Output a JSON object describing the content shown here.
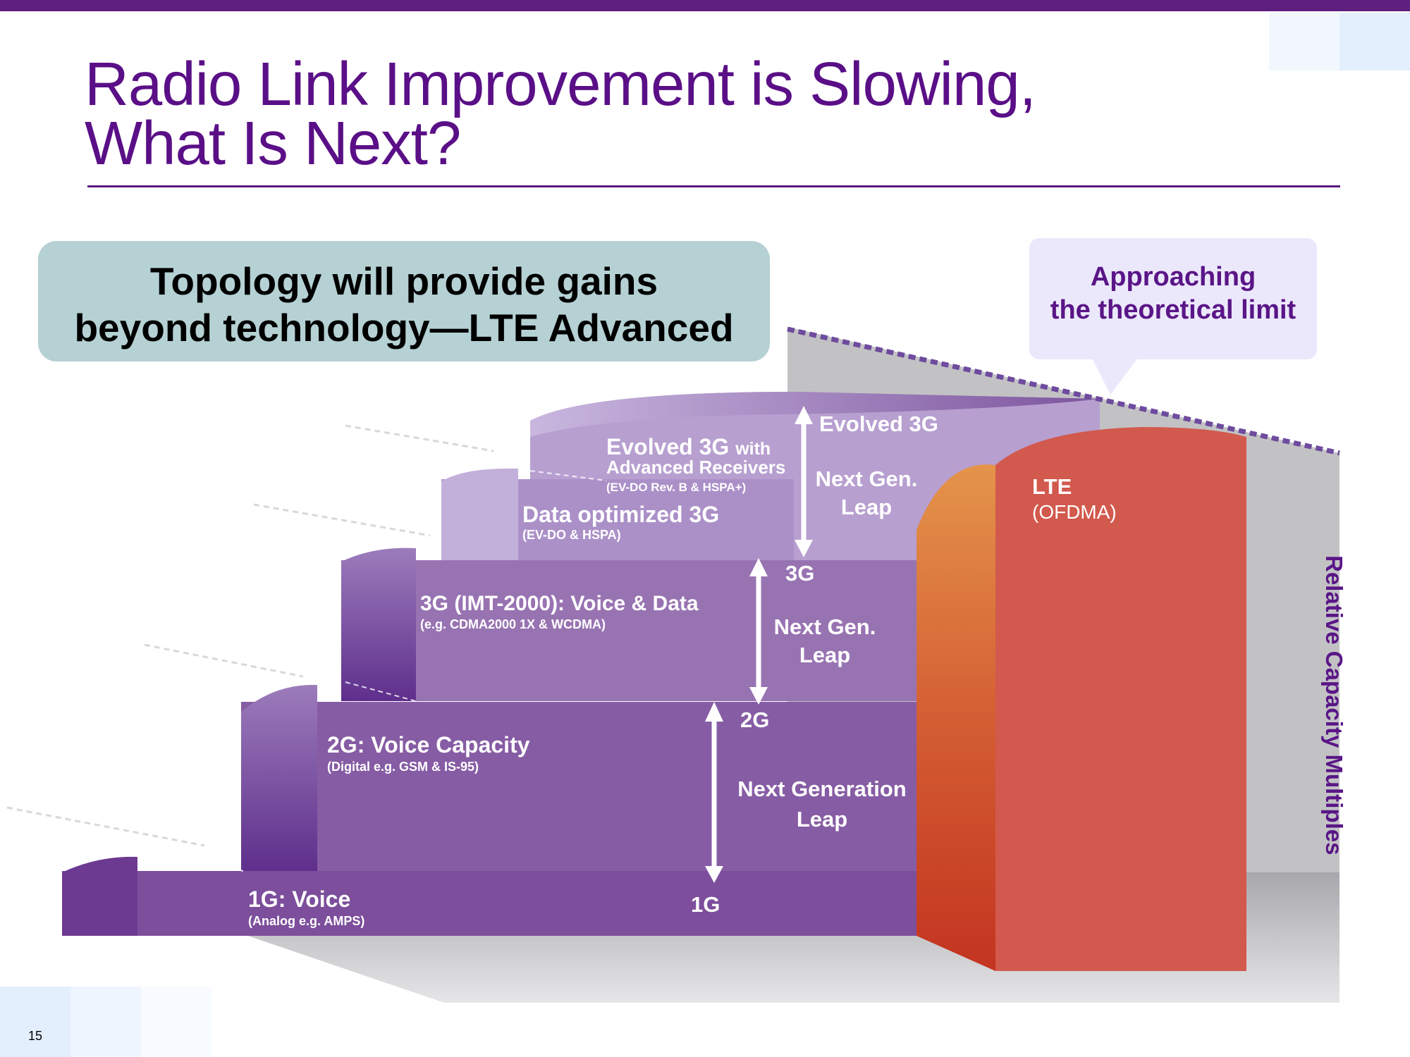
{
  "title": {
    "line1": "Radio Link Improvement is Slowing,",
    "line2": "What Is Next?"
  },
  "callout": {
    "line1": "Topology will provide gains",
    "line2": "beyond technology—LTE  Advanced"
  },
  "limit_callout": {
    "line1": "Approaching",
    "line2": "the theoretical limit"
  },
  "steps": [
    {
      "name": "1G: Voice",
      "detail": "(Analog e.g. AMPS)"
    },
    {
      "name": "2G: Voice Capacity",
      "detail": "(Digital e.g. GSM & IS-95)"
    },
    {
      "name": "3G (IMT-2000): Voice & Data",
      "detail": "(e.g. CDMA2000 1X & WCDMA)"
    },
    {
      "name": "Data optimized 3G",
      "detail": "(EV-DO & HSPA)"
    },
    {
      "name_main": "Evolved 3G",
      "name_suffix": "with",
      "name_line2": "Advanced Receivers",
      "detail": "(EV-DO Rev. B & HSPA+)"
    }
  ],
  "generation_markers": [
    "1G",
    "2G",
    "3G",
    "Evolved 3G"
  ],
  "leaps": [
    {
      "line1": "Next Generation",
      "line2": "Leap"
    },
    {
      "line1": "Next Gen.",
      "line2": "Leap"
    },
    {
      "line1": "Next Gen.",
      "line2": "Leap"
    }
  ],
  "lte": {
    "name": "LTE",
    "detail": "(OFDMA)"
  },
  "axis_label": "Relative Capacity Multiples",
  "page_number": "15",
  "colors": {
    "brand_purple": "#5a0f87",
    "step_purple": "#7f58a2",
    "lte_red": "#d2594d",
    "callout_teal": "#b5d1d4",
    "limit_lavender": "#ebe8fb"
  }
}
